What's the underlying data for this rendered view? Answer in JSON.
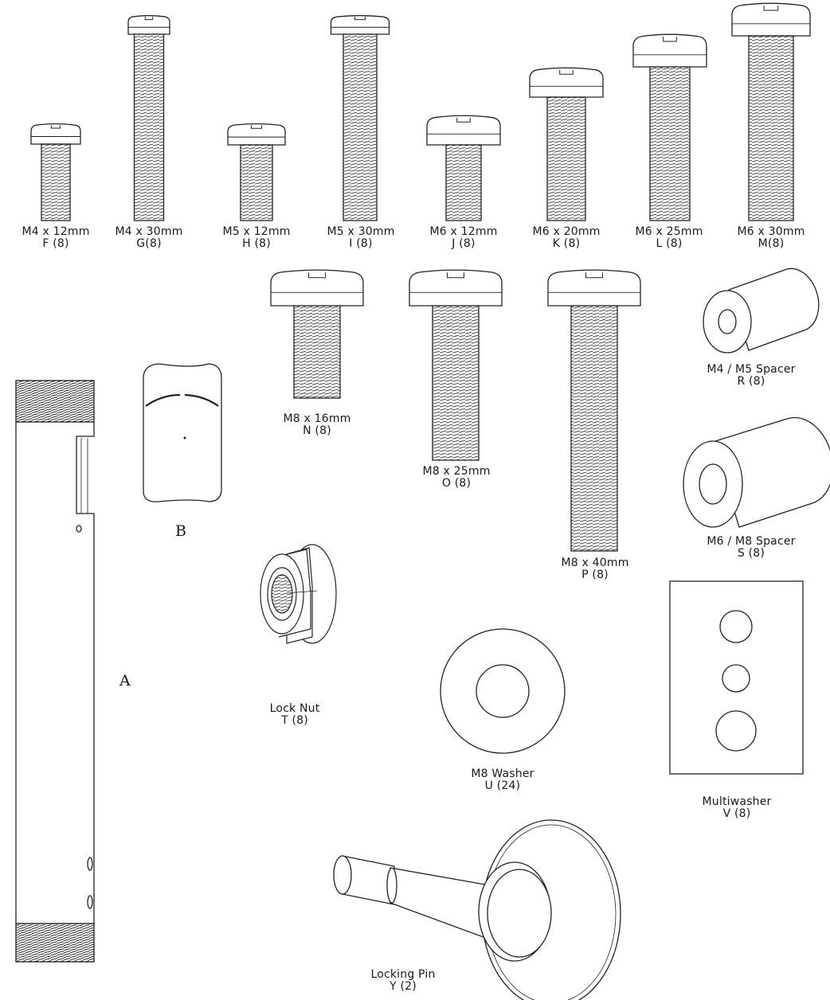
{
  "screws_row1": [
    {
      "size": "M4 x 12mm",
      "code": "F (8)"
    },
    {
      "size": "M4 x 30mm",
      "code": "G(8)"
    },
    {
      "size": "M5 x 12mm",
      "code": "H (8)"
    },
    {
      "size": "M5 x 30mm",
      "code": "I (8)"
    },
    {
      "size": "M6 x 12mm",
      "code": "J (8)"
    },
    {
      "size": "M6 x 20mm",
      "code": "K (8)"
    },
    {
      "size": "M6 x 25mm",
      "code": "L (8)"
    },
    {
      "size": "M6 x 30mm",
      "code": "M(8)"
    }
  ],
  "screws_row2": [
    {
      "size": "M8 x 16mm",
      "code": "N (8)"
    },
    {
      "size": "M8 x 25mm",
      "code": "O (8)"
    },
    {
      "size": "M8 x 40mm",
      "code": "P (8)"
    }
  ],
  "spacers": [
    {
      "name": "M4 / M5 Spacer",
      "code": "R (8)"
    },
    {
      "name": "M6 / M8 Spacer",
      "code": "S (8)"
    }
  ],
  "lock_nut": {
    "name": "Lock Nut",
    "code": "T (8)"
  },
  "washer": {
    "name": "M8 Washer",
    "code": "U (24)"
  },
  "multiwasher": {
    "name": "Multiwasher",
    "code": "V (8)"
  },
  "locking_pin": {
    "name": "Locking Pin",
    "code": "Y (2)"
  },
  "pole_letter": "A",
  "cap_letter": "B"
}
